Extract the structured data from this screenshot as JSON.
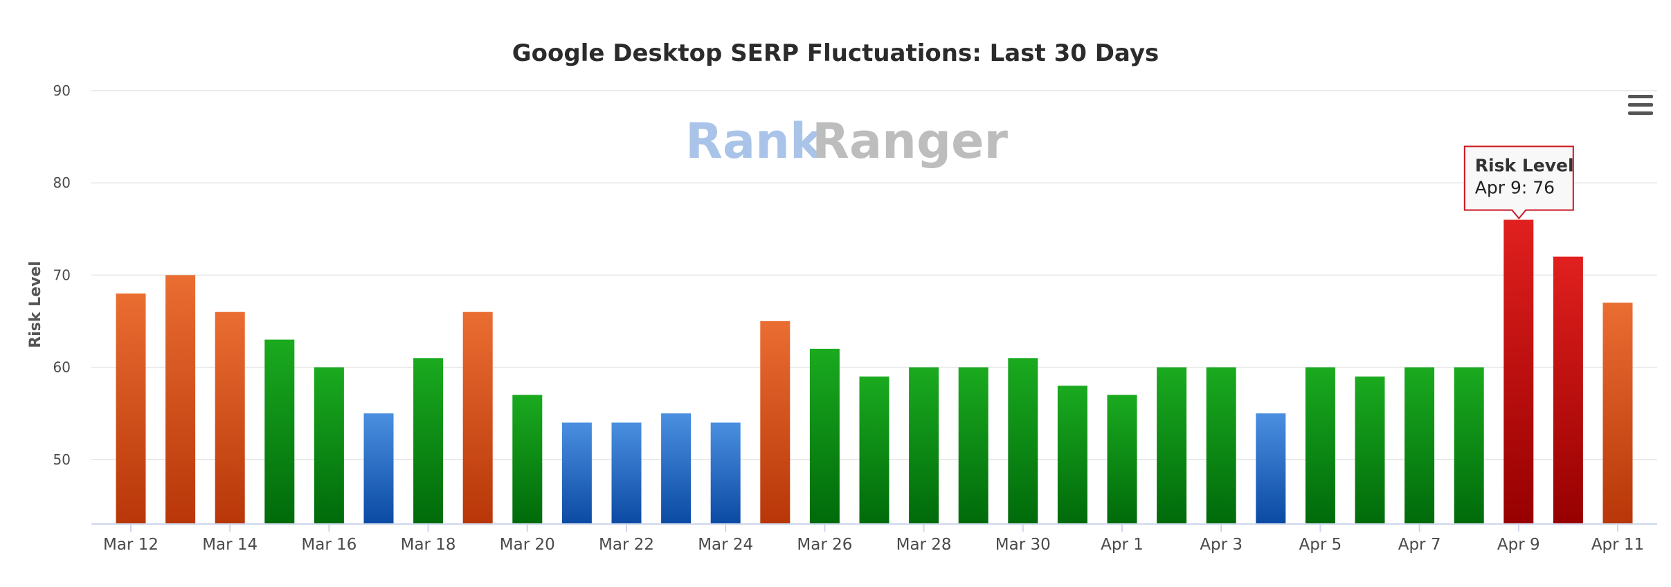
{
  "chart_data": {
    "type": "bar",
    "title": "Google Desktop SERP Fluctuations: Last 30 Days",
    "ylabel": "Risk Level",
    "xlabel": "",
    "ylim": [
      43,
      90
    ],
    "yticks": [
      50,
      60,
      70,
      80,
      90
    ],
    "grid": true,
    "watermark": {
      "part1": "Rank",
      "part2": "Ranger"
    },
    "categories": [
      "Mar 12",
      "Mar 13",
      "Mar 14",
      "Mar 15",
      "Mar 16",
      "Mar 17",
      "Mar 18",
      "Mar 19",
      "Mar 20",
      "Mar 21",
      "Mar 22",
      "Mar 23",
      "Mar 24",
      "Mar 25",
      "Mar 26",
      "Mar 27",
      "Mar 28",
      "Mar 29",
      "Mar 30",
      "Mar 31",
      "Apr 1",
      "Apr 2",
      "Apr 3",
      "Apr 4",
      "Apr 5",
      "Apr 6",
      "Apr 7",
      "Apr 8",
      "Apr 9",
      "Apr 10",
      "Apr 11"
    ],
    "x_tick_labels": [
      "Mar 12",
      "Mar 14",
      "Mar 16",
      "Mar 18",
      "Mar 20",
      "Mar 22",
      "Mar 24",
      "Mar 26",
      "Mar 28",
      "Mar 30",
      "Apr 1",
      "Apr 3",
      "Apr 5",
      "Apr 7",
      "Apr 9",
      "Apr 11"
    ],
    "series": [
      {
        "name": "Risk Level",
        "values": [
          68,
          70,
          66,
          63,
          60,
          55,
          61,
          66,
          57,
          54,
          54,
          55,
          54,
          65,
          62,
          59,
          60,
          60,
          61,
          58,
          57,
          60,
          60,
          55,
          60,
          59,
          60,
          60,
          76,
          72,
          67
        ]
      }
    ],
    "bar_levels": [
      "orange",
      "orange",
      "orange",
      "green",
      "green",
      "blue",
      "green",
      "orange",
      "green",
      "blue",
      "blue",
      "blue",
      "blue",
      "orange",
      "green",
      "green",
      "green",
      "green",
      "green",
      "green",
      "green",
      "green",
      "green",
      "blue",
      "green",
      "green",
      "green",
      "green",
      "red",
      "red",
      "orange"
    ],
    "colors": {
      "blue": {
        "top": "#4a8fe0",
        "bottom": "#0b4aa3"
      },
      "green": {
        "top": "#1aaa1f",
        "bottom": "#006a0a"
      },
      "orange": {
        "top": "#ea6d32",
        "bottom": "#b83608"
      },
      "red": {
        "top": "#e0201e",
        "bottom": "#970000"
      },
      "grid": "#e6e6e6",
      "axis": "#ccd6eb"
    },
    "tooltip": {
      "title": "Risk Level",
      "text": "Apr 9: 76",
      "category": "Apr 9"
    }
  },
  "menu": {
    "icon": "hamburger-menu-icon"
  }
}
